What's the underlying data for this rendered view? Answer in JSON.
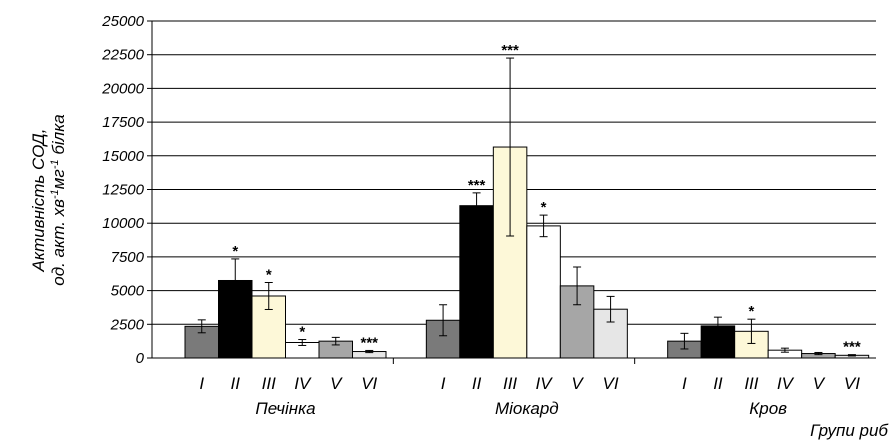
{
  "chart_data": {
    "type": "bar",
    "ylabel_line1": "Активність СОД,",
    "ylabel_line2_parts": [
      "од. акт. хв",
      "-1",
      "мг",
      "-1",
      " білка"
    ],
    "xlabel": "Групи риб",
    "ylim": [
      0,
      25000
    ],
    "yticks": [
      0,
      2500,
      5000,
      7500,
      10000,
      12500,
      15000,
      17500,
      20000,
      22500,
      25000
    ],
    "grid": true,
    "subcategories": [
      "I",
      "II",
      "III",
      "IV",
      "V",
      "VI"
    ],
    "bar_colors": [
      "#7a7a7a",
      "#000000",
      "#fdf8d8",
      "#ffffff",
      "#a6a6a6",
      "#e6e6e6"
    ],
    "groups": [
      {
        "name": "Печінка",
        "values": [
          2350,
          5750,
          4600,
          1150,
          1250,
          480
        ],
        "errors": [
          480,
          1600,
          1000,
          220,
          280,
          80
        ],
        "significance": [
          "",
          "*",
          "*",
          "*",
          "",
          "***"
        ]
      },
      {
        "name": "Міокард",
        "values": [
          2800,
          11300,
          15650,
          9800,
          5350,
          3620
        ],
        "errors": [
          1150,
          950,
          6600,
          800,
          1400,
          950
        ],
        "significance": [
          "",
          "***",
          "***",
          "*",
          "",
          ""
        ]
      },
      {
        "name": "Кров",
        "values": [
          1250,
          2380,
          1980,
          580,
          330,
          200
        ],
        "errors": [
          580,
          650,
          900,
          150,
          80,
          50
        ],
        "significance": [
          "",
          "",
          "*",
          "",
          "",
          "***"
        ]
      }
    ]
  }
}
